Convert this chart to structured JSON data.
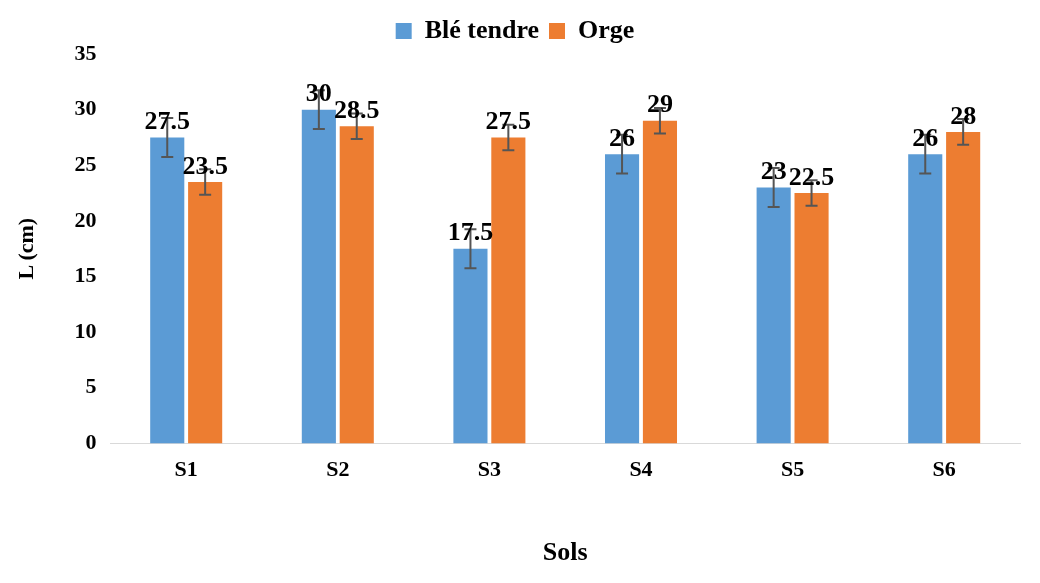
{
  "chart_data": {
    "type": "bar",
    "xlabel": "Sols",
    "ylabel": "L (cm)",
    "categories": [
      "S1",
      "S2",
      "S3",
      "S4",
      "S5",
      "S6"
    ],
    "series": [
      {
        "name": "Blé tendre",
        "color": "#5b9bd5",
        "values": [
          27.5,
          30,
          17.5,
          26,
          23,
          26
        ],
        "errors": [
          1.75,
          1.75,
          1.75,
          1.75,
          1.75,
          1.75
        ]
      },
      {
        "name": "Orge",
        "color": "#ed7d31",
        "values": [
          23.5,
          28.5,
          27.5,
          29,
          22.5,
          28
        ],
        "errors": [
          1.15,
          1.15,
          1.15,
          1.15,
          1.15,
          1.15
        ]
      }
    ],
    "ylim": [
      0,
      35
    ],
    "yticks": [
      0,
      5,
      10,
      15,
      20,
      25,
      30,
      35
    ],
    "grid": false,
    "legend": "top",
    "data_labels": true
  }
}
